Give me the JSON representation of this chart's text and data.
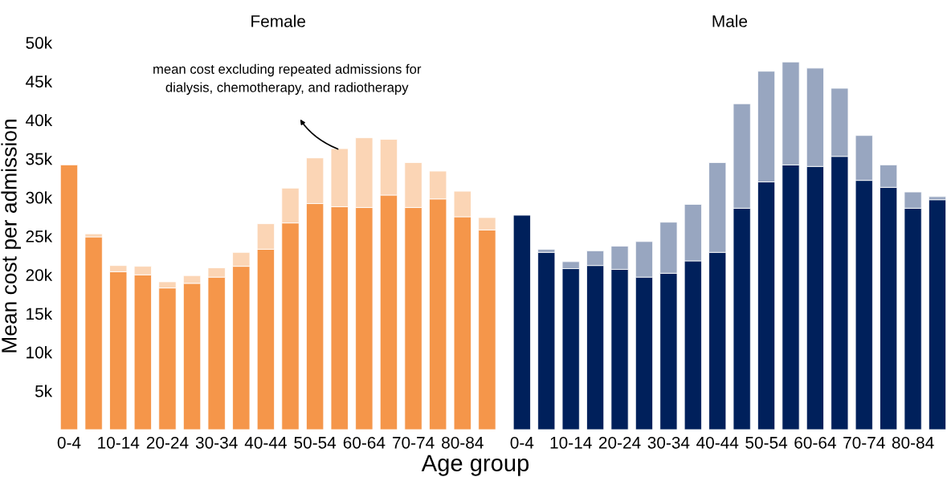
{
  "chart_data": [
    {
      "type": "bar",
      "title": "Female",
      "xlabel": "Age group",
      "ylabel": "Mean cost per admission",
      "stacked": true,
      "grid": false,
      "categories": [
        "0-4",
        null,
        "10-14",
        null,
        "20-24",
        null,
        "30-34",
        null,
        "40-44",
        null,
        "50-54",
        null,
        "60-64",
        null,
        "70-74",
        null,
        "80-84",
        null
      ],
      "series": [
        {
          "color": "#f5964a",
          "values": [
            34200,
            24900,
            20400,
            20000,
            18300,
            18900,
            19700,
            21100,
            23300,
            26700,
            29200,
            28800,
            28700,
            30300,
            28700,
            29800,
            27500,
            25800
          ]
        },
        {
          "color": "#fbd5b5",
          "values": [
            null,
            400,
            800,
            1100,
            800,
            1000,
            1200,
            1800,
            3300,
            4500,
            5900,
            7500,
            9000,
            7200,
            5800,
            3600,
            3300,
            1600
          ]
        }
      ],
      "ylim": [
        0,
        50000
      ],
      "yticks": [
        {
          "value": 5000,
          "label": "5k"
        },
        {
          "value": 10000,
          "label": "10k"
        },
        {
          "value": 15000,
          "label": "15k"
        },
        {
          "value": 20000,
          "label": "20k"
        },
        {
          "value": 25000,
          "label": "25k"
        },
        {
          "value": 30000,
          "label": "30k"
        },
        {
          "value": 35000,
          "label": "35k"
        },
        {
          "value": 40000,
          "label": "40k"
        },
        {
          "value": 45000,
          "label": "45k"
        },
        {
          "value": 50000,
          "label": "50k"
        }
      ],
      "annotations": [
        "mean cost excluding repeated admissions for\ndialysis, chemotherapy, and radiotherapy"
      ]
    },
    {
      "type": "bar",
      "title": "Male",
      "stacked": true,
      "grid": false,
      "tick_labels": "x",
      "categories": [
        "0-4",
        null,
        "10-14",
        null,
        "20-24",
        null,
        "30-34",
        null,
        "40-44",
        null,
        "50-54",
        null,
        "60-64",
        null,
        "70-74",
        null,
        "80-84",
        null
      ],
      "series": [
        {
          "color": "#00205b",
          "values": [
            27700,
            22900,
            20800,
            21200,
            20700,
            19700,
            20200,
            21800,
            22900,
            28600,
            32000,
            34200,
            34000,
            35300,
            32200,
            31300,
            28600,
            29700
          ]
        },
        {
          "color": "#98a6c0",
          "values": [
            null,
            400,
            900,
            1900,
            3000,
            4600,
            6600,
            7300,
            11600,
            13500,
            14300,
            13300,
            12700,
            8800,
            5800,
            2900,
            2100,
            400
          ]
        }
      ],
      "ylim": [
        0,
        50000
      ]
    }
  ]
}
